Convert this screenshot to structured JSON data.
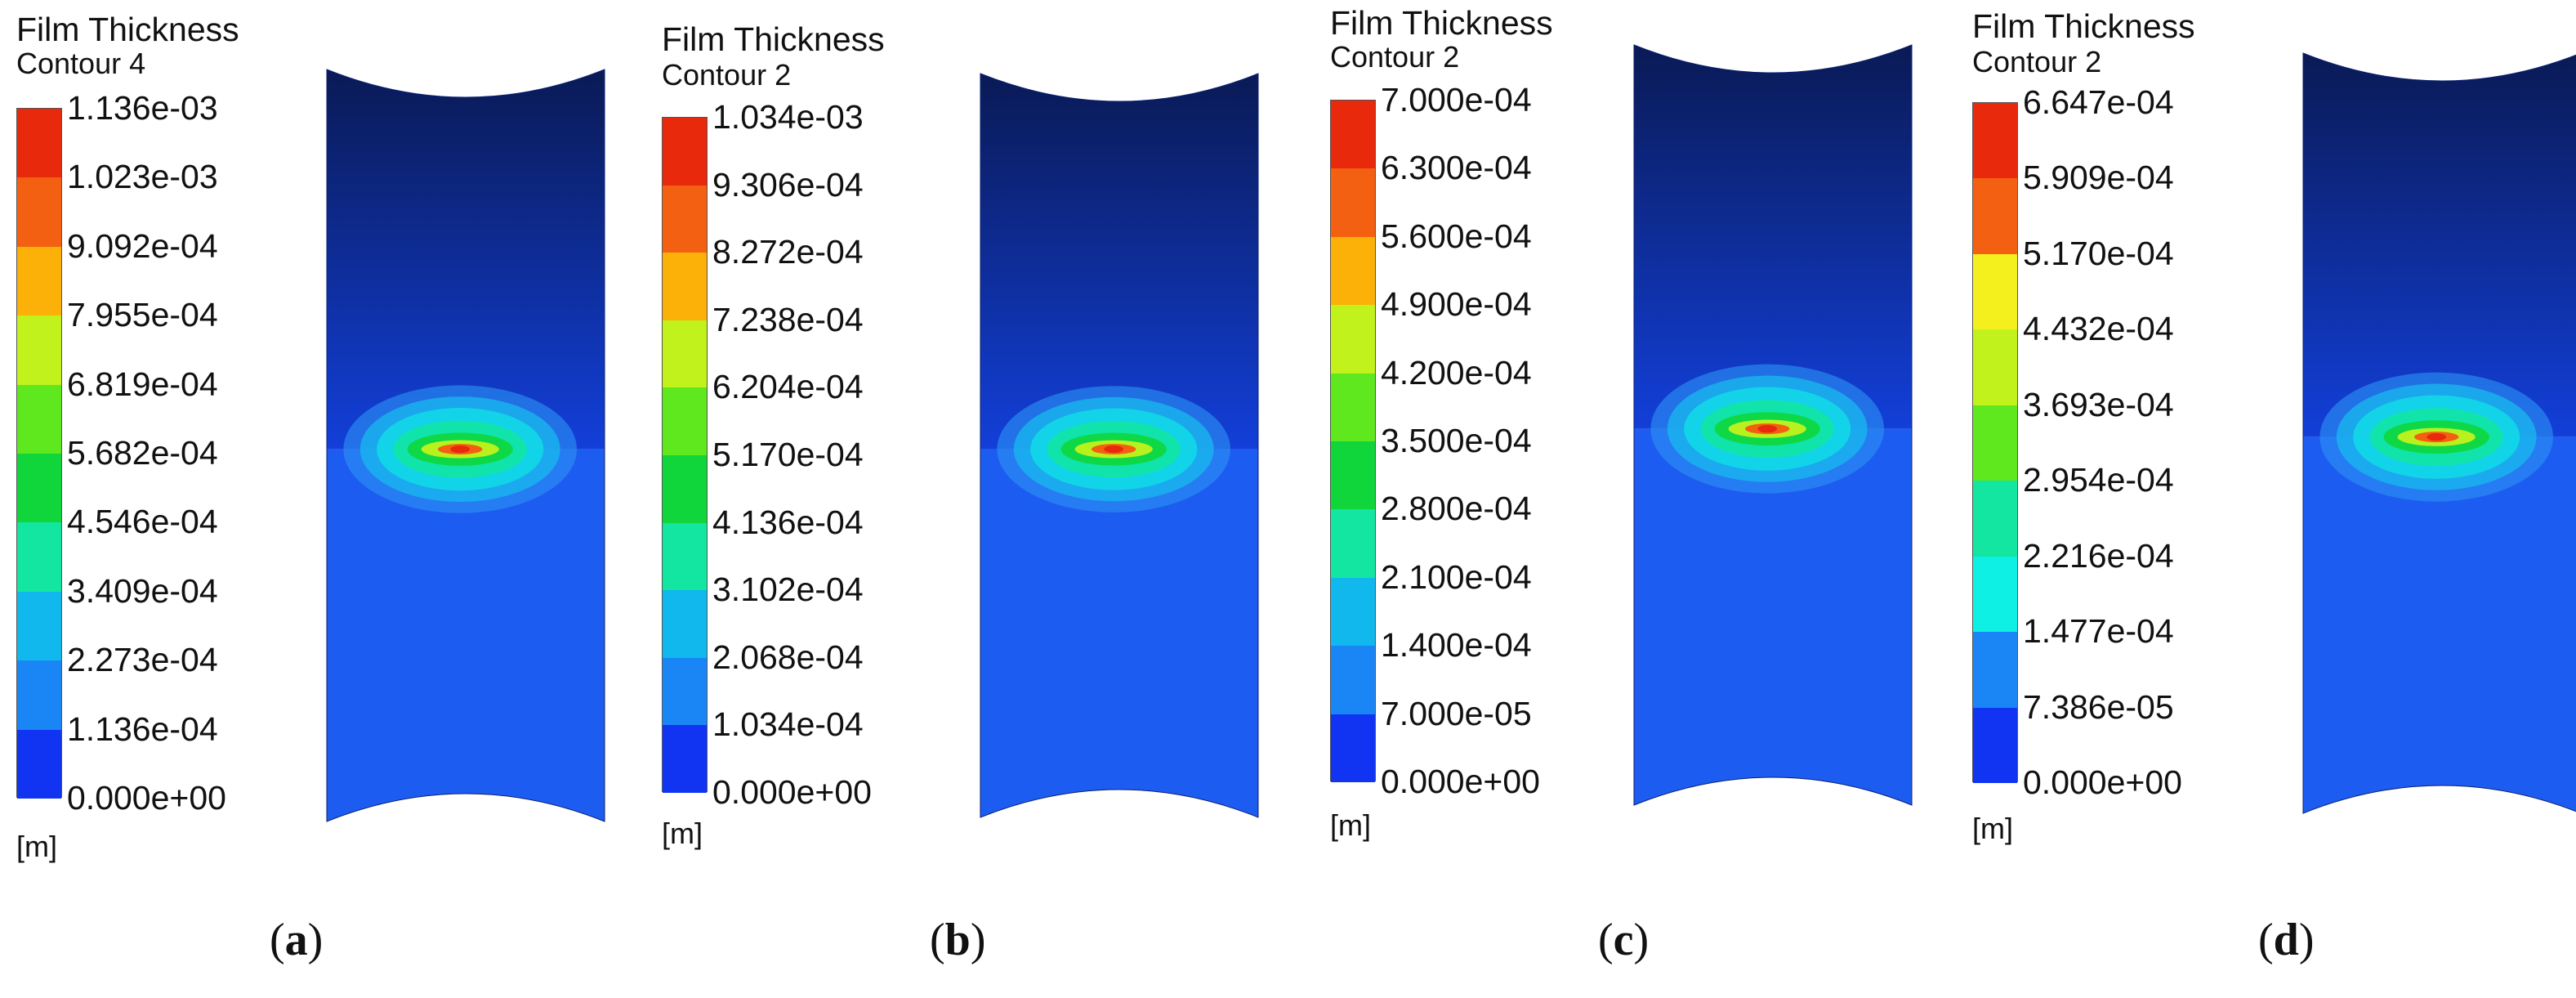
{
  "caption_prefix": "(",
  "caption_suffix": ")",
  "colormap": [
    "#1034f2",
    "#1a86f5",
    "#10b8ee",
    "#0ef0e4",
    "#12e6a0",
    "#10d63c",
    "#5fe81e",
    "#c2f21c",
    "#f4f01e",
    "#fbb107",
    "#f46011",
    "#e8290c"
  ],
  "panels": [
    {
      "label": "a",
      "title": "Film Thickness",
      "subtitle": "Contour 4",
      "unit": "[m]",
      "ticks": [
        "1.136e-03",
        "1.023e-03",
        "9.092e-04",
        "7.955e-04",
        "6.819e-04",
        "5.682e-04",
        "4.546e-04",
        "3.409e-04",
        "2.273e-04",
        "1.136e-04",
        "0.000e+00"
      ],
      "max_value": 0.001136
    },
    {
      "label": "b",
      "title": "Film Thickness",
      "subtitle": "Contour 2",
      "unit": "[m]",
      "ticks": [
        "1.034e-03",
        "9.306e-04",
        "8.272e-04",
        "7.238e-04",
        "6.204e-04",
        "5.170e-04",
        "4.136e-04",
        "3.102e-04",
        "2.068e-04",
        "1.034e-04",
        "0.000e+00"
      ],
      "max_value": 0.001034
    },
    {
      "label": "c",
      "title": "Film Thickness",
      "subtitle": "Contour 2",
      "unit": "[m]",
      "ticks": [
        "7.000e-04",
        "6.300e-04",
        "5.600e-04",
        "4.900e-04",
        "4.200e-04",
        "3.500e-04",
        "2.800e-04",
        "2.100e-04",
        "1.400e-04",
        "7.000e-05",
        "0.000e+00"
      ],
      "max_value": 0.0007
    },
    {
      "label": "d",
      "title": "Film Thickness",
      "subtitle": "Contour 2",
      "unit": "[m]",
      "ticks": [
        "6.647e-04",
        "5.909e-04",
        "5.170e-04",
        "4.432e-04",
        "3.693e-04",
        "2.954e-04",
        "2.216e-04",
        "1.477e-04",
        "7.386e-05",
        "0.000e+00"
      ],
      "max_value": 0.0006647
    }
  ]
}
